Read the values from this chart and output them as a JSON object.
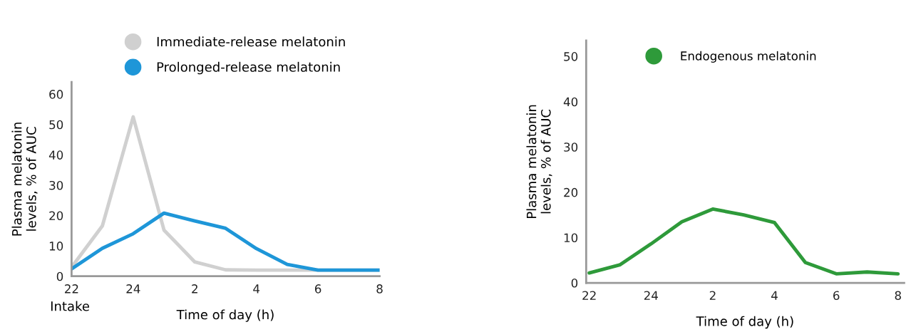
{
  "chart_data": [
    {
      "type": "line",
      "ylabel": "Plasma melatonin\nlevels, % of AUC",
      "xlabel": "Time of day (h)",
      "annotations": [
        "Intake"
      ],
      "categories": [
        "22",
        null,
        "24",
        null,
        "2",
        null,
        "4",
        null,
        "6",
        null,
        "8"
      ],
      "series": [
        {
          "name": "Immediate-release melatonin",
          "color": "#d0d0d0",
          "values": [
            3,
            16.6,
            52.5,
            15.2,
            4.7,
            2.1,
            2,
            2,
            2,
            2,
            2
          ]
        },
        {
          "name": "Prolonged-release melatonin",
          "color": "#1e96d8",
          "values": [
            2.4,
            9.2,
            14,
            20.8,
            18.2,
            15.8,
            9.1,
            3.9,
            2,
            2,
            2
          ]
        }
      ],
      "ylim": [
        0,
        64
      ],
      "yticks": [
        0,
        10,
        20,
        30,
        40,
        50,
        60
      ],
      "legend": "top",
      "marker": "none",
      "line_style": "solid"
    },
    {
      "type": "line",
      "ylabel": "Plasma melatonin\nlevels, % of AUC",
      "xlabel": "Time of day (h)",
      "categories": [
        "22",
        null,
        "24",
        null,
        "2",
        null,
        "4",
        null,
        "6",
        null,
        "8"
      ],
      "series": [
        {
          "name": "Endogenous melatonin",
          "color": "#2e9a3a",
          "values": [
            2.2,
            4,
            8.6,
            13.5,
            16.3,
            15,
            13.3,
            4.5,
            2,
            2.4,
            2
          ]
        }
      ],
      "ylim": [
        0,
        53.5
      ],
      "yticks": [
        0,
        10,
        20,
        30,
        40,
        50
      ],
      "legend": "top",
      "marker": "none",
      "line_style": "solid"
    }
  ]
}
